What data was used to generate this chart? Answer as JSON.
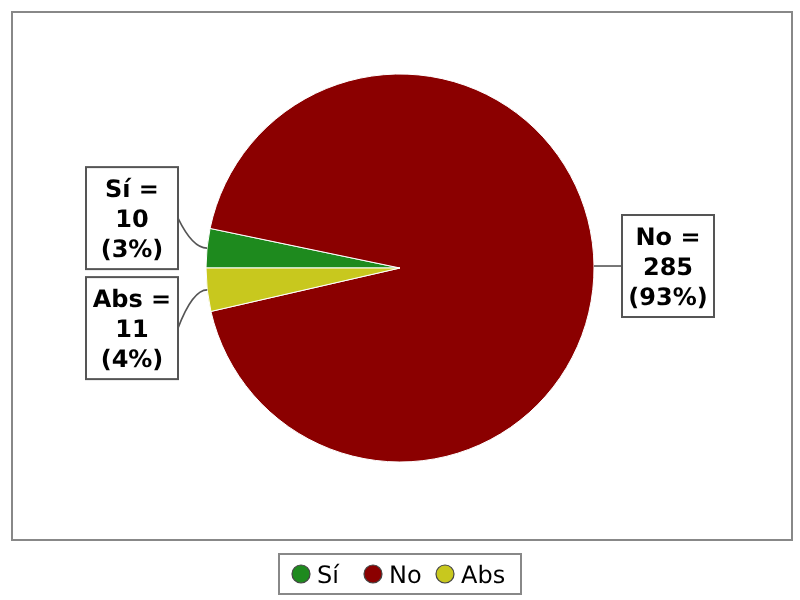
{
  "chart_data": {
    "type": "pie",
    "categories": [
      "Sí",
      "No",
      "Abs"
    ],
    "values": [
      10,
      285,
      11
    ],
    "colors": [
      "#1e8a1e",
      "#8b0000",
      "#c8c81e"
    ],
    "value_labels": [
      "Sí =\n10\n(3%)",
      "No =\n285\n(93%)",
      "Abs =\n11\n(4%)"
    ],
    "legend": "bottom"
  }
}
